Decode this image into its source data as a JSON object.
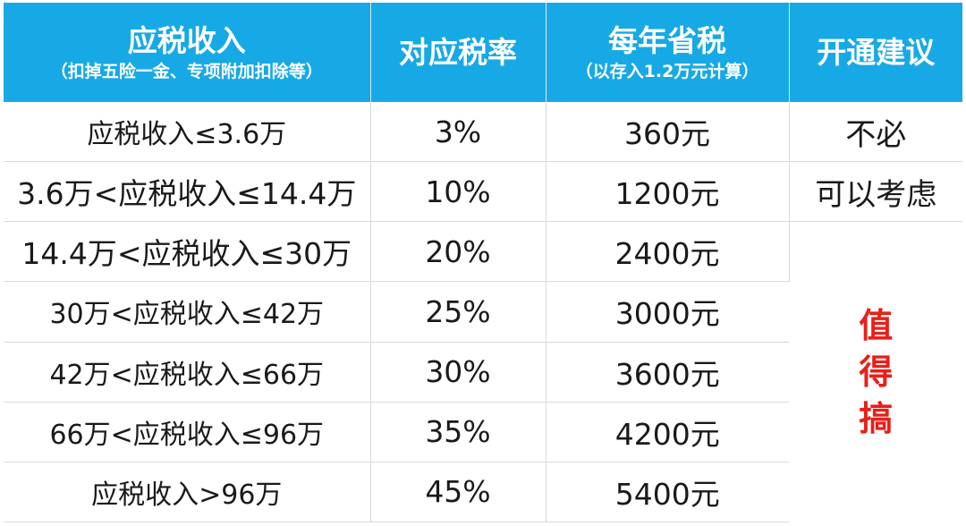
{
  "header": {
    "col1_title": "应税收入",
    "col1_sub": "（扣掉五险一金、专项附加扣除等）",
    "col2_title": "对应税率",
    "col3_title": "每年省税",
    "col3_sub": "（以存入1.2万元计算）",
    "col4_title": "开通建议"
  },
  "rows": [
    {
      "income": "应税收入≤3.6万",
      "rate": "3%",
      "saving": "360元"
    },
    {
      "income": "3.6万<应税收入≤14.4万",
      "rate": "10%",
      "saving": "1200元"
    },
    {
      "income": "14.4万<应税收入≤30万",
      "rate": "20%",
      "saving": "2400元"
    },
    {
      "income": "30万<应税收入≤42万",
      "rate": "25%",
      "saving": "3000元"
    },
    {
      "income": "42万<应税收入≤66万",
      "rate": "30%",
      "saving": "3600元"
    },
    {
      "income": "66万<应税收入≤96万",
      "rate": "35%",
      "saving": "4200元"
    },
    {
      "income": "应税收入>96万",
      "rate": "45%",
      "saving": "5400元"
    }
  ],
  "advice": {
    "not_needed": "不必",
    "consider": "可以考虑",
    "worth_it": "值得搞"
  },
  "colors": {
    "header_bg": "#17a9e6",
    "header_text": "#ffffff",
    "highlight_red": "#e8201a",
    "grid_line": "#d6d9dc"
  }
}
